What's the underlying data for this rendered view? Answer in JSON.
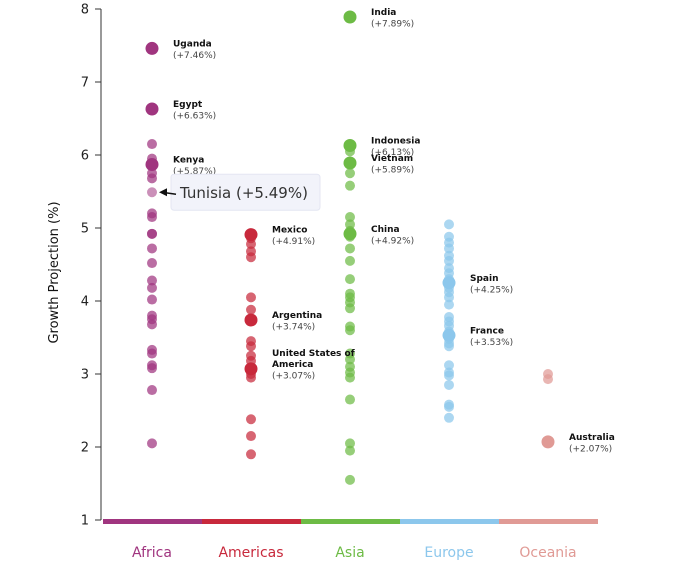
{
  "chart_data": {
    "type": "scatter",
    "title": "",
    "ylabel": "Growth Projection (%)",
    "xlabel": "",
    "ylim": [
      1,
      8
    ],
    "yticks": [
      "1",
      "2",
      "3",
      "4",
      "5",
      "6",
      "7",
      "8"
    ],
    "grid": false,
    "legend": "none",
    "categories": [
      {
        "name": "Africa",
        "color": "#a0357f"
      },
      {
        "name": "Americas",
        "color": "#c8293c"
      },
      {
        "name": "Asia",
        "color": "#6dbb45"
      },
      {
        "name": "Europe",
        "color": "#8cc7ec"
      },
      {
        "name": "Oceania",
        "color": "#e09a95"
      }
    ],
    "series": [
      {
        "name": "Africa",
        "values": [
          7.46,
          6.63,
          6.15,
          5.95,
          5.87,
          5.75,
          5.68,
          5.49,
          5.2,
          5.15,
          4.92,
          4.92,
          4.72,
          4.52,
          4.28,
          4.18,
          4.02,
          3.8,
          3.75,
          3.68,
          3.33,
          3.28,
          3.12,
          3.08,
          2.78,
          2.05
        ]
      },
      {
        "name": "Americas",
        "values": [
          4.91,
          4.86,
          4.78,
          4.68,
          4.6,
          4.05,
          3.88,
          3.74,
          3.45,
          3.38,
          3.25,
          3.18,
          3.07,
          3.0,
          2.95,
          2.38,
          2.15,
          1.9
        ]
      },
      {
        "name": "Asia",
        "values": [
          7.89,
          6.13,
          6.05,
          5.89,
          5.75,
          5.58,
          5.15,
          5.05,
          4.96,
          4.92,
          4.88,
          4.72,
          4.55,
          4.3,
          4.1,
          4.05,
          3.98,
          3.9,
          3.65,
          3.6,
          3.28,
          3.2,
          3.1,
          3.02,
          2.95,
          2.65,
          2.05,
          1.95,
          1.55
        ]
      },
      {
        "name": "Europe",
        "values": [
          5.05,
          4.88,
          4.8,
          4.72,
          4.62,
          4.55,
          4.45,
          4.38,
          4.3,
          4.25,
          4.18,
          4.12,
          4.05,
          3.95,
          3.78,
          3.72,
          3.66,
          3.58,
          3.53,
          3.48,
          3.42,
          3.38,
          3.12,
          3.02,
          2.98,
          2.85,
          2.58,
          2.55,
          2.4
        ]
      },
      {
        "name": "Oceania",
        "values": [
          3.0,
          2.93,
          2.07
        ]
      }
    ],
    "annotations": [
      {
        "category": "Africa",
        "value": 7.46,
        "name": "Uganda",
        "label": "(+7.46%)"
      },
      {
        "category": "Africa",
        "value": 6.63,
        "name": "Egypt",
        "label": "(+6.63%)"
      },
      {
        "category": "Africa",
        "value": 5.87,
        "name": "Kenya",
        "label": "(+5.87%)"
      },
      {
        "category": "Americas",
        "value": 4.91,
        "name": "Mexico",
        "label": "(+4.91%)"
      },
      {
        "category": "Americas",
        "value": 3.74,
        "name": "Argentina",
        "label": "(+3.74%)"
      },
      {
        "category": "Americas",
        "value": 3.07,
        "name": "United States of America",
        "label": "(+3.07%)"
      },
      {
        "category": "Asia",
        "value": 7.89,
        "name": "India",
        "label": "(+7.89%)"
      },
      {
        "category": "Asia",
        "value": 6.13,
        "name": "Indonesia",
        "label": "(+6.13%)"
      },
      {
        "category": "Asia",
        "value": 5.89,
        "name": "Vietnam",
        "label": "(+5.89%)"
      },
      {
        "category": "Asia",
        "value": 4.92,
        "name": "China",
        "label": "(+4.92%)"
      },
      {
        "category": "Europe",
        "value": 4.25,
        "name": "Spain",
        "label": "(+4.25%)"
      },
      {
        "category": "Europe",
        "value": 3.53,
        "name": "France",
        "label": "(+3.53%)"
      },
      {
        "category": "Oceania",
        "value": 2.07,
        "name": "Australia",
        "label": "(+2.07%)"
      }
    ],
    "tooltip": {
      "category": "Africa",
      "value": 5.49,
      "text": "Tunisia (+5.49%)"
    }
  }
}
